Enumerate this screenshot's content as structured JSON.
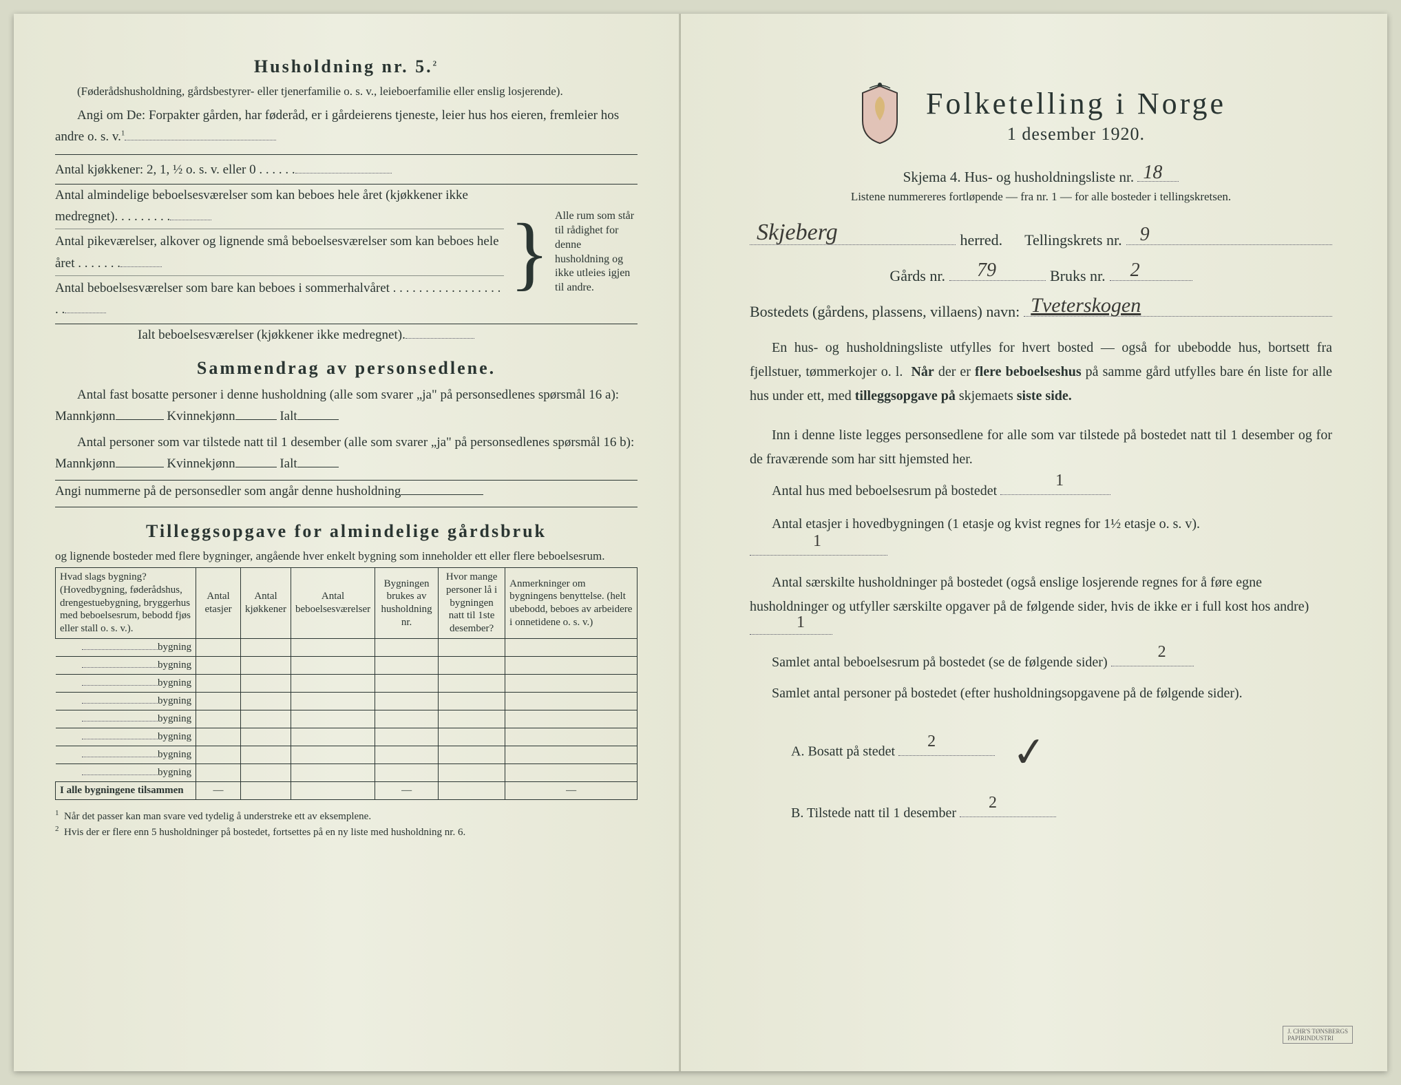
{
  "left": {
    "heading": "Husholdning nr. 5.",
    "heading_sup": "2",
    "sub1": "(Føderådshusholdning, gårdsbestyrer- eller tjenerfamilie o. s. v., leieboerfamilie eller enslig losjerende).",
    "sub2": "Angi om De: Forpakter gården, har føderåd, er i gårdeierens tjeneste, leier hus hos eieren, fremleier hos andre o. s. v.",
    "sub2_sup": "1",
    "kjokken": "Antal kjøkkener: 2, 1, ½ o. s. v. eller 0 . . . . . .",
    "rooms": [
      "Antal almindelige beboelsesværelser som kan beboes hele året (kjøkkener ikke medregnet). . . . . . . . .",
      "Antal pikeværelser, alkover og lignende små beboelsesværelser som kan beboes hele året . . . . . . .",
      "Antal beboelsesværelser som bare kan beboes i sommerhalvåret . . . . . . . . . . . . . . . . . . ."
    ],
    "brace_note": "Alle rum som står til rådighet for denne husholdning og ikke utleies igjen til andre.",
    "ialt": "Ialt beboelsesværelser (kjøkkener ikke medregnet).",
    "sammendrag_h": "Sammendrag av personsedlene.",
    "sd_l1a": "Antal fast bosatte personer i denne husholdning (alle som svarer „ja\" på personsedlenes spørsmål 16 a): Mannkjønn",
    "sd_kv": "Kvinnekjønn",
    "sd_ialt": "Ialt",
    "sd_l2a": "Antal personer som var tilstede natt til 1 desember (alle som svarer „ja\" på personsedlenes spørsmål 16 b): Mannkjønn",
    "sd_l3": "Angi nummerne på de personsedler som angår denne husholdning",
    "tillegg_h": "Tilleggsopgave for almindelige gårdsbruk",
    "tillegg_sub": "og lignende bosteder med flere bygninger, angående hver enkelt bygning som inneholder ett eller flere beboelsesrum.",
    "table": {
      "headers": [
        "Hvad slags bygning?\n(Hovedbygning, føderådshus, drengestuebygning, bryggerhus med beboelsesrum, bebodd fjøs eller stall o. s. v.).",
        "Antal etasjer",
        "Antal kjøkkener",
        "Antal beboelsesværelser",
        "Bygningen brukes av husholdning nr.",
        "Hvor mange personer lå i bygningen natt til 1ste desember?",
        "Anmerkninger om bygningens benyttelse. (helt ubebodd, beboes av arbeidere i onnetidene o. s. v.)"
      ],
      "row_label": "bygning",
      "row_count": 8,
      "footer": "I alle bygningene tilsammen"
    },
    "footnote1": "Når det passer kan man svare ved tydelig å understreke ett av eksemplene.",
    "footnote2": "Hvis der er flere enn 5 husholdninger på bostedet, fortsettes på en ny liste med husholdning nr. 6."
  },
  "right": {
    "title": "Folketelling i Norge",
    "date": "1 desember 1920.",
    "skjema": "Skjema 4.  Hus- og husholdningsliste nr.",
    "skjema_hw": "18",
    "note": "Listene nummereres fortløpende — fra nr. 1 — for alle bosteder i tellingskretsen.",
    "herred_hw": "Skjeberg",
    "herred_lbl": "herred.",
    "tellingskrets_lbl": "Tellingskrets nr.",
    "tellingskrets_hw": "9",
    "gards_lbl": "Gårds nr.",
    "gards_hw": "79",
    "bruks_lbl": "Bruks nr.",
    "bruks_hw": "2",
    "bosted_lbl": "Bostedets (gårdens, plassens, villaens) navn:",
    "bosted_hw": "Tveterskogen",
    "p1": "En hus- og husholdningsliste utfylles for hvert bosted — også for ubebodde hus, bortsett fra fjellstuer, tømmerkojer o. l.  Når der er flere beboelseshus på samme gård utfylles bare én liste for alle hus under ett, med tilleggsopgave på skjemaets siste side.",
    "p1_bold1": "Når",
    "p1_bold2": "flere beboelseshus",
    "p1_bold3": "tilleggsopgave på",
    "p1_bold4": "siste side.",
    "p2": "Inn i denne liste legges personsedlene for alle som var tilstede på bostedet natt til 1 desember og for de fraværende som har sitt hjemsted her.",
    "q1": "Antal hus med beboelsesrum på bostedet",
    "q1_hw": "1",
    "q2a": "Antal etasjer i hovedbygningen (1 etasje og kvist regnes for 1½ etasje o. s. v).",
    "q2_hw": "1",
    "q3": "Antal særskilte husholdninger på bostedet (også enslige losjerende regnes for å føre egne husholdninger og utfyller særskilte opgaver på de følgende sider, hvis de ikke er i full kost hos andre)",
    "q3_hw": "1",
    "q4": "Samlet antal beboelsesrum på bostedet (se de følgende sider)",
    "q4_hw": "2",
    "q5": "Samlet antal personer på bostedet (efter husholdningsopgavene på de følgende sider).",
    "qA": "A.  Bosatt på stedet",
    "qA_hw": "2",
    "qB": "B.  Tilstede natt til 1 desember",
    "qB_hw": "2"
  }
}
